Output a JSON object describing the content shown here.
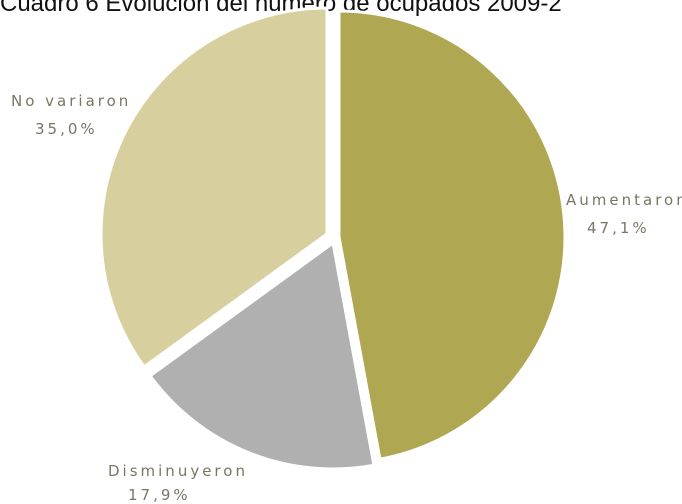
{
  "chart_data": {
    "type": "pie",
    "title": "Cuadro 6 Evolución del número de ocupados 2009-2",
    "slices": [
      {
        "label": "Aumentaron",
        "value": 47.1,
        "display": "47,1%",
        "color": "#afa752"
      },
      {
        "label": "Disminuyeron",
        "value": 17.9,
        "display": "17,9%",
        "color": "#b1b0b1"
      },
      {
        "label": "No variaron",
        "value": 35.0,
        "display": "35,0%",
        "color": "#d7cf9e"
      }
    ],
    "legend": "none"
  }
}
